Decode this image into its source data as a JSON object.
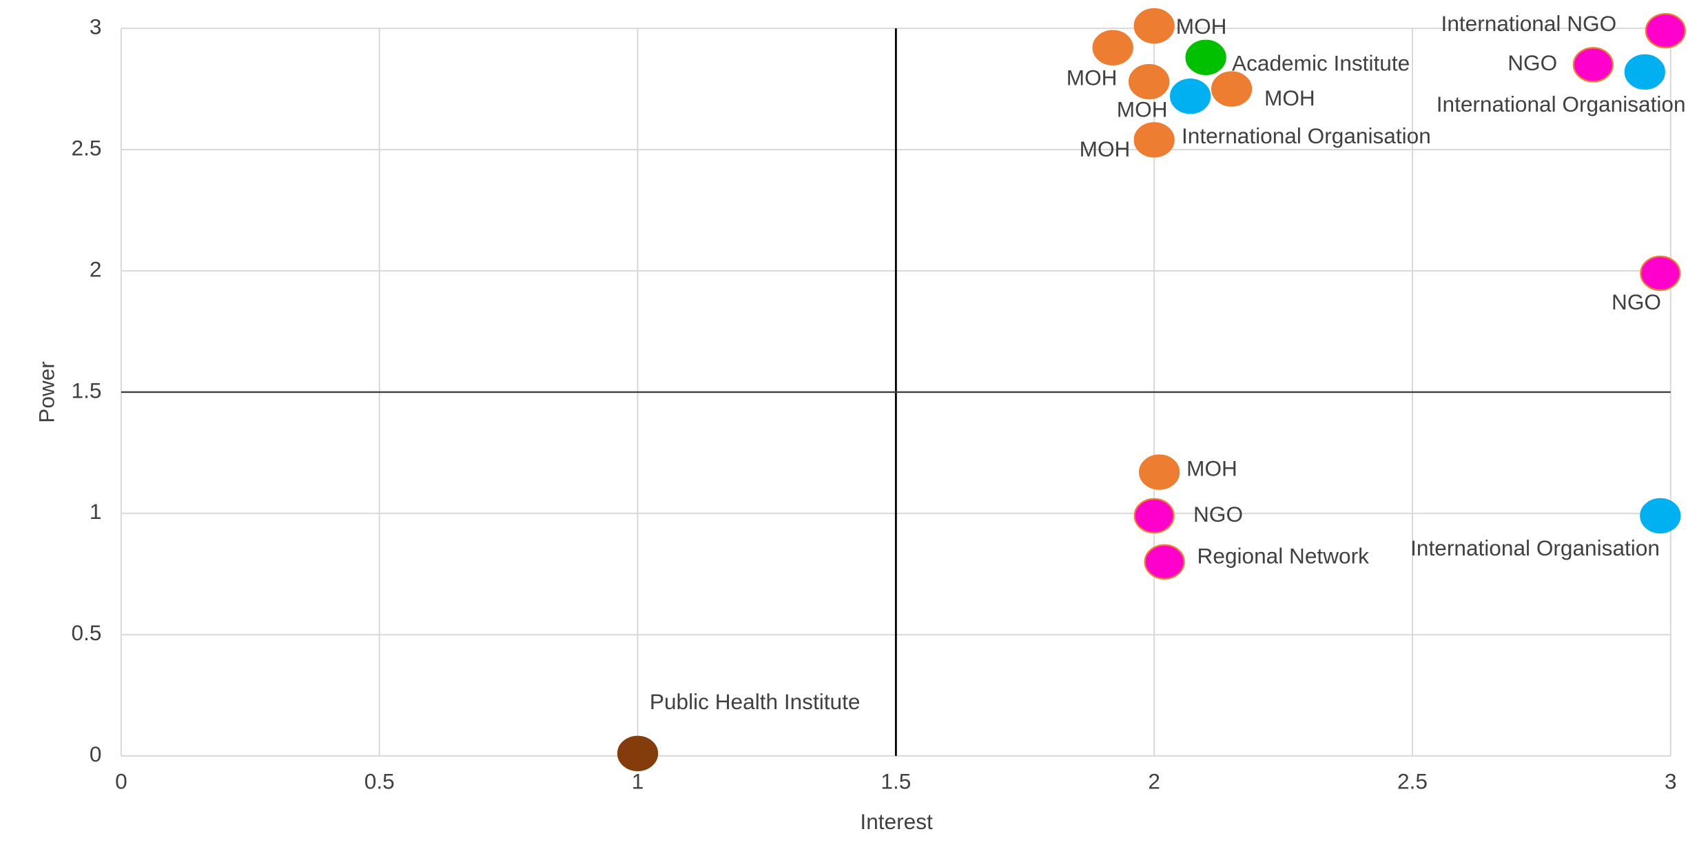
{
  "chart_data": {
    "type": "scatter",
    "xlabel": "Interest",
    "ylabel": "Power",
    "x": [
      2.0,
      1.92,
      2.1,
      1.99,
      2.07,
      2.15,
      2.0,
      2.99,
      2.85,
      2.95,
      2.98,
      2.01,
      2.0,
      2.02,
      2.98,
      1.0
    ],
    "values": [
      3.01,
      2.92,
      2.88,
      2.78,
      2.72,
      2.75,
      2.54,
      2.99,
      2.85,
      2.82,
      1.99,
      1.17,
      0.99,
      0.8,
      0.99,
      0.01
    ],
    "labels": [
      "MOH",
      "MOH",
      "Academic Institute",
      "MOH",
      "International Organisation",
      "MOH",
      "MOH",
      "International NGO",
      "NGO",
      "International Organisation",
      "NGO",
      "MOH",
      "NGO",
      "Regional Network",
      "International Organisation",
      "Public Health Institute"
    ],
    "colors": [
      "#ed7d31",
      "#ed7d31",
      "#00c000",
      "#ed7d31",
      "#00b0f0",
      "#ed7d31",
      "#ed7d31",
      "#ff00cc",
      "#ff00cc",
      "#00b0f0",
      "#ff00cc",
      "#ed7d31",
      "#ff00cc",
      "#ff00cc",
      "#00b0f0",
      "#843c0c"
    ],
    "xlim": [
      0,
      3
    ],
    "ylim": [
      0,
      3
    ],
    "xticks": [
      0,
      0.5,
      1,
      1.5,
      2,
      2.5,
      3
    ],
    "yticks": [
      0,
      0.5,
      1,
      1.5,
      2,
      2.5,
      3
    ],
    "grid": true,
    "quadrant_lines": {
      "x": 1.5,
      "y": 1.5
    }
  }
}
